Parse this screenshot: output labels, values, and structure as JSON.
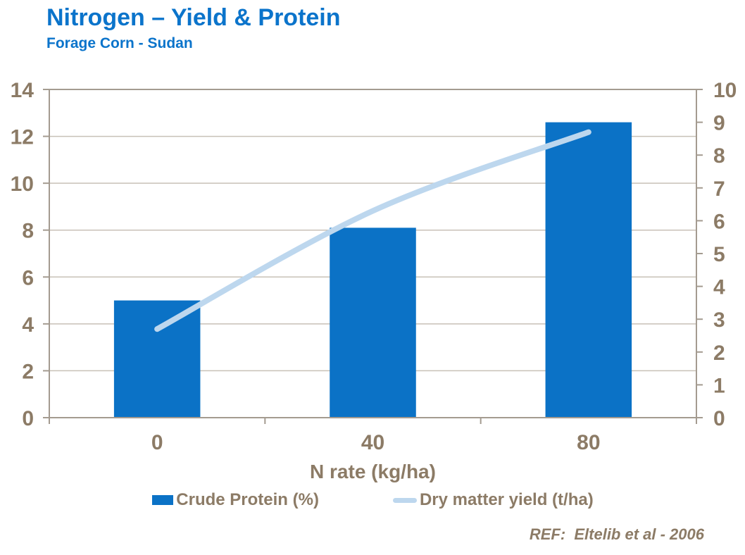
{
  "header": {
    "title": "Nitrogen – Yield & Protein",
    "subtitle": "Forage Corn - Sudan"
  },
  "chart_data": {
    "type": "bar",
    "subtype": "combo-bar-line",
    "categories": [
      "0",
      "40",
      "80"
    ],
    "series": [
      {
        "name": "Crude Protein (%)",
        "render": "bar",
        "axis": "left",
        "values": [
          5.0,
          8.1,
          12.6
        ],
        "color": "#0B72C6"
      },
      {
        "name": "Dry matter yield (t/ha)",
        "render": "line",
        "axis": "right",
        "values": [
          2.7,
          6.3,
          8.7
        ],
        "color": "#BDD7EE"
      }
    ],
    "title": "Nitrogen – Yield & Protein",
    "subtitle": "Forage Corn - Sudan",
    "xlabel": "N rate (kg/ha)",
    "ylabel": "",
    "left_axis": {
      "min": 0,
      "max": 14,
      "step": 2,
      "tick_labels": [
        "0",
        "2",
        "4",
        "6",
        "8",
        "10",
        "12",
        "14"
      ]
    },
    "right_axis": {
      "min": 0,
      "max": 10,
      "step": 1,
      "tick_labels": [
        "0",
        "1",
        "2",
        "3",
        "4",
        "5",
        "6",
        "7",
        "8",
        "9",
        "10"
      ]
    },
    "grid": true,
    "legend_position": "bottom"
  },
  "legend": {
    "items": [
      {
        "label": "Crude Protein (%)",
        "swatch": "bar-swatch",
        "color": "#0B72C6"
      },
      {
        "label": "Dry matter yield (t/ha)",
        "swatch": "line-swatch",
        "color": "#BDD7EE"
      }
    ]
  },
  "footer": {
    "ref": "REF:  Eltelib et al - 2006"
  },
  "colors": {
    "title_blue": "#0B74CB",
    "bar_blue": "#0B72C6",
    "line_light_blue": "#BDD7EE",
    "axis_text_brown": "#8C7B66",
    "gridline": "#C8C1B7",
    "plot_border": "#A49B90"
  }
}
